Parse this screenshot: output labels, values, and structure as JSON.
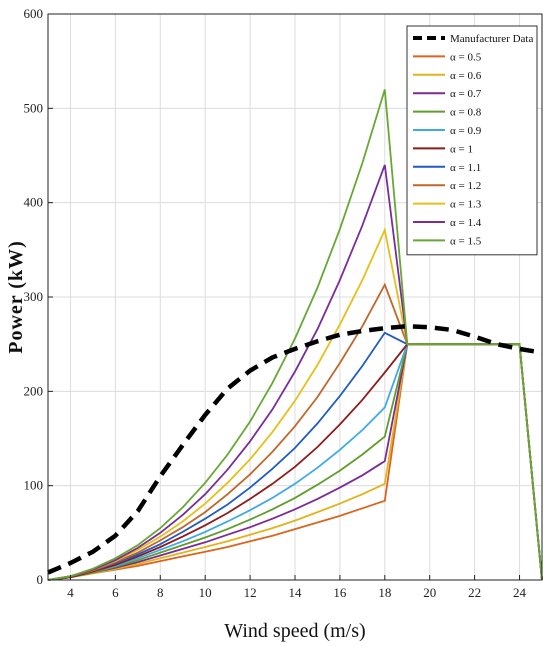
{
  "chart_data": {
    "type": "line",
    "xlabel": "Wind speed (m/s)",
    "ylabel": "Power (kW)",
    "xlim": [
      3,
      25
    ],
    "ylim": [
      0,
      600
    ],
    "xticks": [
      4,
      6,
      8,
      10,
      12,
      14,
      16,
      18,
      20,
      22,
      24
    ],
    "yticks": [
      0,
      100,
      200,
      300,
      400,
      500,
      600
    ],
    "grid": true,
    "legend_position": "top-right",
    "manufacturer": {
      "name": "Manufacturer Data",
      "color": "#000000",
      "x": [
        3,
        4,
        5,
        6,
        7,
        8,
        9,
        10,
        11,
        12,
        13,
        14,
        15,
        16,
        17,
        18,
        19,
        20,
        21,
        22,
        23,
        24,
        25
      ],
      "y": [
        8,
        18,
        30,
        47,
        73,
        110,
        143,
        175,
        203,
        222,
        236,
        245,
        253,
        260,
        264,
        267,
        269,
        268,
        265,
        258,
        250,
        245,
        241
      ]
    },
    "series": [
      {
        "name": "α = 0.5",
        "color": "#d9651f",
        "x": [
          3,
          4,
          5,
          6,
          7,
          8,
          9,
          10,
          11,
          12,
          13,
          14,
          15,
          16,
          17,
          18,
          19,
          20,
          21,
          22,
          23,
          24,
          25
        ],
        "y": [
          0,
          3,
          7,
          11,
          15,
          20,
          25,
          30,
          35,
          41,
          47,
          54,
          61,
          68,
          76,
          84,
          250,
          250,
          250,
          250,
          250,
          250,
          0
        ]
      },
      {
        "name": "α = 0.6",
        "color": "#e3b31c",
        "x": [
          3,
          4,
          5,
          6,
          7,
          8,
          9,
          10,
          11,
          12,
          13,
          14,
          15,
          16,
          17,
          18,
          19,
          20,
          21,
          22,
          23,
          24,
          25
        ],
        "y": [
          0,
          3,
          7,
          12,
          17,
          23,
          29,
          35,
          41,
          48,
          55,
          63,
          72,
          81,
          91,
          102,
          250,
          250,
          250,
          250,
          250,
          250,
          0
        ]
      },
      {
        "name": "α = 0.7",
        "color": "#7b2a96",
        "x": [
          3,
          4,
          5,
          6,
          7,
          8,
          9,
          10,
          11,
          12,
          13,
          14,
          15,
          16,
          17,
          18,
          19,
          20,
          21,
          22,
          23,
          24,
          25
        ],
        "y": [
          0,
          3,
          8,
          13,
          19,
          26,
          33,
          40,
          48,
          56,
          65,
          75,
          86,
          98,
          111,
          126,
          250,
          250,
          250,
          250,
          250,
          250,
          0
        ]
      },
      {
        "name": "α = 0.8",
        "color": "#5f9e2a",
        "x": [
          3,
          4,
          5,
          6,
          7,
          8,
          9,
          10,
          11,
          12,
          13,
          14,
          15,
          16,
          17,
          18,
          19,
          20,
          21,
          22,
          23,
          24,
          25
        ],
        "y": [
          0,
          3,
          8,
          14,
          21,
          29,
          37,
          45,
          54,
          64,
          75,
          87,
          101,
          116,
          133,
          152,
          250,
          250,
          250,
          250,
          250,
          250,
          0
        ]
      },
      {
        "name": "α = 0.9",
        "color": "#3fa9e8",
        "x": [
          3,
          4,
          5,
          6,
          7,
          8,
          9,
          10,
          11,
          12,
          13,
          14,
          15,
          16,
          17,
          18,
          19,
          20,
          21,
          22,
          23,
          24,
          25
        ],
        "y": [
          0,
          3,
          9,
          15,
          23,
          32,
          41,
          51,
          62,
          74,
          87,
          102,
          119,
          138,
          159,
          183,
          250,
          250,
          250,
          250,
          250,
          250,
          0
        ]
      },
      {
        "name": "α = 1",
        "color": "#8e1b1b",
        "x": [
          3,
          4,
          5,
          6,
          7,
          8,
          9,
          10,
          11,
          12,
          13,
          14,
          15,
          16,
          17,
          18,
          19,
          20,
          21,
          22,
          23,
          24,
          25
        ],
        "y": [
          0,
          3,
          9,
          16,
          25,
          35,
          46,
          58,
          71,
          86,
          102,
          120,
          141,
          165,
          191,
          220,
          250,
          250,
          250,
          250,
          250,
          250,
          0
        ]
      },
      {
        "name": "α = 1.1",
        "color": "#1f5cc4",
        "x": [
          3,
          4,
          5,
          6,
          7,
          8,
          9,
          10,
          11,
          12,
          13,
          14,
          15,
          16,
          17,
          18,
          19,
          20,
          21,
          22,
          23,
          24,
          25
        ],
        "y": [
          0,
          4,
          10,
          18,
          27,
          38,
          51,
          65,
          80,
          98,
          118,
          140,
          166,
          195,
          227,
          262,
          250,
          250,
          250,
          250,
          250,
          250,
          0
        ]
      },
      {
        "name": "α = 1.2",
        "color": "#c0672a",
        "x": [
          3,
          4,
          5,
          6,
          7,
          8,
          9,
          10,
          11,
          12,
          13,
          14,
          15,
          16,
          17,
          18,
          19,
          20,
          21,
          22,
          23,
          24,
          25
        ],
        "y": [
          0,
          4,
          10,
          19,
          29,
          42,
          56,
          72,
          91,
          112,
          136,
          163,
          194,
          230,
          269,
          313,
          250,
          250,
          250,
          250,
          250,
          250,
          0
        ]
      },
      {
        "name": "α = 1.3",
        "color": "#e6bf1a",
        "x": [
          3,
          4,
          5,
          6,
          7,
          8,
          9,
          10,
          11,
          12,
          13,
          14,
          15,
          16,
          17,
          18,
          19,
          20,
          21,
          22,
          23,
          24,
          25
        ],
        "y": [
          0,
          4,
          11,
          20,
          32,
          46,
          62,
          81,
          103,
          128,
          157,
          190,
          228,
          271,
          318,
          371,
          250,
          250,
          250,
          250,
          250,
          250,
          0
        ]
      },
      {
        "name": "α = 1.4",
        "color": "#7a2d9a",
        "x": [
          3,
          4,
          5,
          6,
          7,
          8,
          9,
          10,
          11,
          12,
          13,
          14,
          15,
          16,
          17,
          18,
          19,
          20,
          21,
          22,
          23,
          24,
          25
        ],
        "y": [
          0,
          4,
          11,
          21,
          34,
          50,
          69,
          91,
          117,
          147,
          181,
          221,
          266,
          318,
          376,
          440,
          250,
          250,
          250,
          250,
          250,
          250,
          0
        ]
      },
      {
        "name": "α = 1.5",
        "color": "#66a832",
        "x": [
          3,
          4,
          5,
          6,
          7,
          8,
          9,
          10,
          11,
          12,
          13,
          14,
          15,
          16,
          17,
          18,
          19,
          20,
          21,
          22,
          23,
          24,
          25
        ],
        "y": [
          0,
          4,
          12,
          23,
          37,
          55,
          77,
          103,
          133,
          168,
          209,
          256,
          310,
          372,
          442,
          520,
          250,
          250,
          250,
          250,
          250,
          250,
          0
        ]
      }
    ]
  }
}
